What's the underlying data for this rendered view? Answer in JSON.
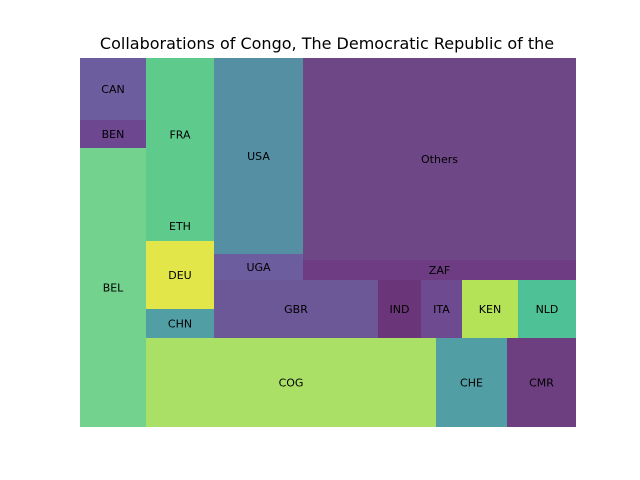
{
  "chart_data": {
    "type": "treemap",
    "title": "Collaborations of Congo, The Democratic Republic of the",
    "cells": [
      {
        "label": "CAN",
        "color": "#6c5d9e"
      },
      {
        "label": "BEN",
        "color": "#6e4791"
      },
      {
        "label": "BEL",
        "color": "#73d28d"
      },
      {
        "label": "FRA",
        "color": "#5ecb8d"
      },
      {
        "label": "ETH",
        "color": "#5ecb8d"
      },
      {
        "label": "DEU",
        "color": "#e2e649"
      },
      {
        "label": "CHN",
        "color": "#519ea5"
      },
      {
        "label": "USA",
        "color": "#548fa4"
      },
      {
        "label": "UGA",
        "color": "#6c5d9e"
      },
      {
        "label": "Others",
        "color": "#6e4787"
      },
      {
        "label": "ZAF",
        "color": "#6e3c82"
      },
      {
        "label": "GBR",
        "color": "#6c5797"
      },
      {
        "label": "IND",
        "color": "#6b3679"
      },
      {
        "label": "ITA",
        "color": "#6e4b91"
      },
      {
        "label": "KEN",
        "color": "#b4e358"
      },
      {
        "label": "NLD",
        "color": "#4fc197"
      },
      {
        "label": "COG",
        "color": "#abe067"
      },
      {
        "label": "CHE",
        "color": "#519ea5"
      },
      {
        "label": "CMR",
        "color": "#6d3f80"
      }
    ]
  }
}
